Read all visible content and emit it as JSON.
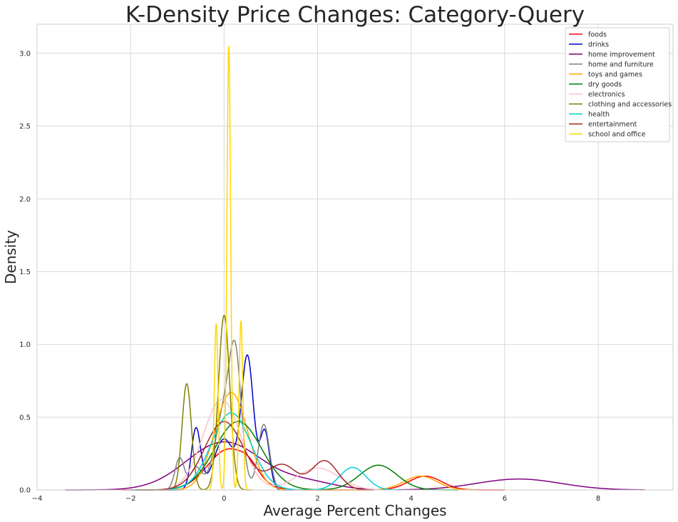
{
  "chart_data": {
    "type": "line",
    "title": "K-Density Price Changes: Category-Query",
    "xlabel": "Average Percent Changes",
    "ylabel": "Density",
    "xlim": [
      -4,
      9.6
    ],
    "ylim": [
      0,
      3.2
    ],
    "xticks": [
      -4,
      -2,
      0,
      2,
      4,
      6,
      8
    ],
    "yticks": [
      0.0,
      0.5,
      1.0,
      1.5,
      2.0,
      2.5,
      3.0
    ],
    "xtick_labels": [
      "−4",
      "−2",
      "0",
      "2",
      "4",
      "6",
      "8"
    ],
    "ytick_labels": [
      "0.0",
      "0.5",
      "1.0",
      "1.5",
      "2.0",
      "2.5",
      "3.0"
    ],
    "grid": true,
    "legend_position": "top-right",
    "series": [
      {
        "name": "foods",
        "color": "#ff0000",
        "range": [
          -2.2,
          6.0
        ],
        "components": [
          [
            0.1,
            0.45,
            0.28
          ],
          [
            0.55,
            0.18,
            0.05
          ],
          [
            4.3,
            0.35,
            0.095
          ]
        ]
      },
      {
        "name": "drinks",
        "color": "#0000cc",
        "range": [
          -1.2,
          1.5
        ],
        "components": [
          [
            -0.6,
            0.1,
            0.42
          ],
          [
            0.0,
            0.22,
            0.35
          ],
          [
            0.5,
            0.13,
            0.9
          ],
          [
            0.87,
            0.1,
            0.4
          ]
        ]
      },
      {
        "name": "home improvement",
        "color": "#800080",
        "range": [
          -3.4,
          9.0
        ],
        "components": [
          [
            0.0,
            0.8,
            0.33
          ],
          [
            1.8,
            0.6,
            0.05
          ],
          [
            6.3,
            0.9,
            0.075
          ]
        ]
      },
      {
        "name": "home and furniture",
        "color": "#808080",
        "range": [
          -1.4,
          1.3
        ],
        "components": [
          [
            -0.95,
            0.1,
            0.22
          ],
          [
            -0.6,
            0.12,
            0.15
          ],
          [
            0.05,
            0.22,
            0.6
          ],
          [
            0.25,
            0.12,
            0.6
          ],
          [
            0.85,
            0.12,
            0.45
          ]
        ]
      },
      {
        "name": "toys and games",
        "color": "#ffa500",
        "range": [
          -1.2,
          5.4
        ],
        "components": [
          [
            0.15,
            0.35,
            0.67
          ],
          [
            4.2,
            0.35,
            0.095
          ]
        ]
      },
      {
        "name": "dry goods",
        "color": "#008000",
        "range": [
          -1.8,
          5.0
        ],
        "components": [
          [
            0.3,
            0.5,
            0.47
          ],
          [
            3.3,
            0.4,
            0.17
          ]
        ]
      },
      {
        "name": "electronics",
        "color": "#ffc0cb",
        "range": [
          -1.5,
          3.3
        ],
        "components": [
          [
            -0.05,
            0.4,
            0.62
          ],
          [
            2.0,
            0.45,
            0.15
          ]
        ]
      },
      {
        "name": "clothing and accessories",
        "color": "#808000",
        "range": [
          -1.7,
          0.6
        ],
        "components": [
          [
            -0.8,
            0.1,
            0.73
          ],
          [
            0.0,
            0.12,
            1.2
          ]
        ]
      },
      {
        "name": "health",
        "color": "#00cfd5",
        "range": [
          -2.0,
          3.8
        ],
        "components": [
          [
            0.15,
            0.42,
            0.53
          ],
          [
            2.75,
            0.28,
            0.155
          ]
        ]
      },
      {
        "name": "entertainment",
        "color": "#a52a2a",
        "range": [
          -1.9,
          3.2
        ],
        "components": [
          [
            0.0,
            0.42,
            0.47
          ],
          [
            1.25,
            0.3,
            0.17
          ],
          [
            2.15,
            0.28,
            0.2
          ]
        ]
      },
      {
        "name": "school and office",
        "color": "#ffd700",
        "range": [
          -0.4,
          0.6
        ],
        "components": [
          [
            -0.17,
            0.04,
            1.14
          ],
          [
            0.1,
            0.04,
            3.05
          ],
          [
            0.36,
            0.04,
            1.16
          ]
        ]
      }
    ]
  }
}
